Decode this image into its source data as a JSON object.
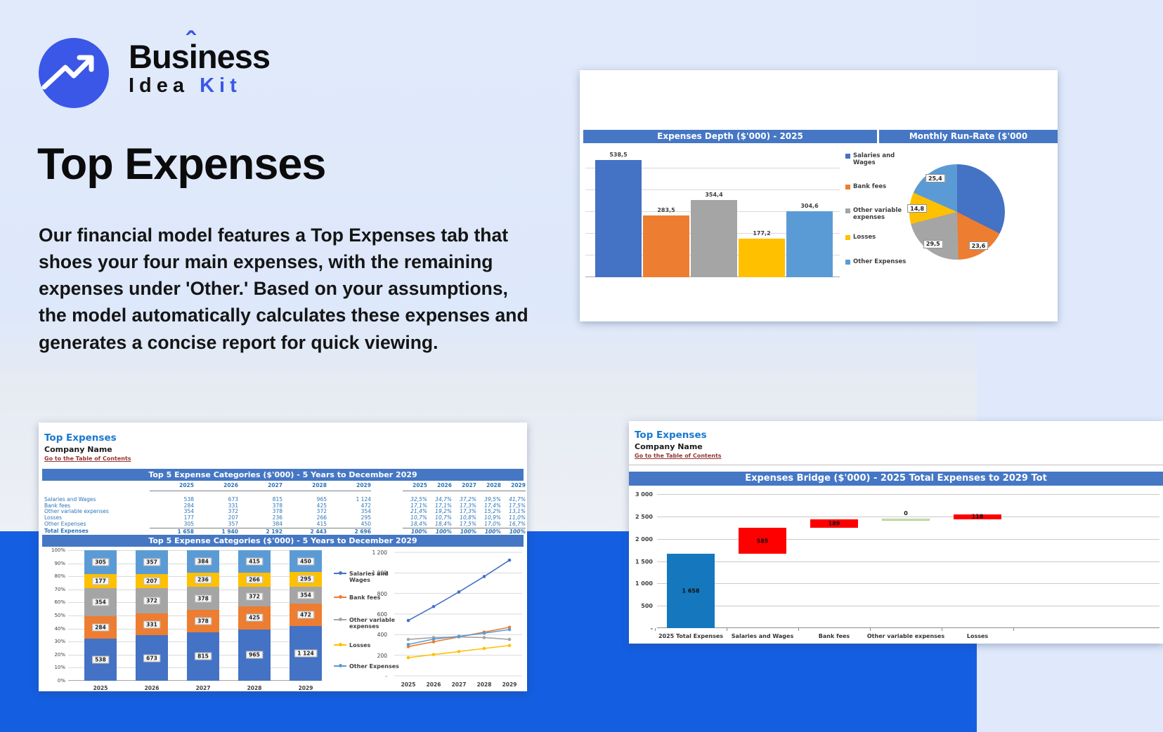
{
  "brand": {
    "line1_pre": "Bus",
    "line1_i": "i",
    "line1_hat": "ˆ",
    "line1_post": "ness",
    "line2_word1": "Idea",
    "line2_word2": "Kit"
  },
  "hero": {
    "title": "Top Expenses",
    "body": "Our financial model features a Top Expenses tab that shoes your four main expenses, with the remaining expenses under 'Other.' Based on your assumptions, the model automatically calculates these expenses and generates a concise report for quick viewing."
  },
  "palette": {
    "series": [
      "#4472C4",
      "#ED7D31",
      "#A5A5A5",
      "#FFC000",
      "#5B9BD5"
    ],
    "header_bar": "#4577C4",
    "red": "#FF0000",
    "total_blue": "#1578BE",
    "green_fill": "#CFE7BD",
    "green_border": "#AFCF92",
    "accent_blue": "#3B57E8",
    "sheet_title_blue": "#1878CE",
    "link_maroon": "#943634",
    "band_blue": "#145EE1"
  },
  "legend_series": [
    "Salaries and Wages",
    "Bank fees",
    "Other variable expenses",
    "Losses",
    "Other Expenses"
  ],
  "card_depth": {
    "bar_title": "Expenses Depth ($'000) - 2025",
    "pie_title": "Monthly Run-Rate ($'000"
  },
  "sheet1": {
    "title": "Top Expenses",
    "company": "Company Name",
    "link": "Go to the Table of Contents",
    "section1": "Top 5 Expense Categories ($'000) - 5 Years to December 2029",
    "section2": "Top 5 Expense Categories ($'000) - 5 Years to December 2029",
    "years": [
      "2025",
      "2026",
      "2027",
      "2028",
      "2029"
    ],
    "rows": [
      {
        "label": "Salaries and Wages",
        "values": [
          "538",
          "673",
          "815",
          "965",
          "1 124"
        ],
        "pcts": [
          "32,5%",
          "34,7%",
          "37,2%",
          "39,5%",
          "41,7%"
        ]
      },
      {
        "label": "Bank fees",
        "values": [
          "284",
          "331",
          "378",
          "425",
          "472"
        ],
        "pcts": [
          "17,1%",
          "17,1%",
          "17,3%",
          "17,4%",
          "17,5%"
        ]
      },
      {
        "label": "Other variable expenses",
        "values": [
          "354",
          "372",
          "378",
          "372",
          "354"
        ],
        "pcts": [
          "21,4%",
          "19,2%",
          "17,3%",
          "15,2%",
          "13,1%"
        ]
      },
      {
        "label": "Losses",
        "values": [
          "177",
          "207",
          "236",
          "266",
          "295"
        ],
        "pcts": [
          "10,7%",
          "10,7%",
          "10,8%",
          "10,9%",
          "11,0%"
        ]
      },
      {
        "label": "Other Expenses",
        "values": [
          "305",
          "357",
          "384",
          "415",
          "450"
        ],
        "pcts": [
          "18,4%",
          "18,4%",
          "17,5%",
          "17,0%",
          "16,7%"
        ]
      }
    ],
    "total": {
      "label": "Total Expenses",
      "values": [
        "1 658",
        "1 940",
        "2 192",
        "2 443",
        "2 696"
      ],
      "pcts": [
        "100%",
        "100%",
        "100%",
        "100%",
        "100%"
      ]
    }
  },
  "sheet2": {
    "title": "Top Expenses",
    "company": "Company Name",
    "link": "Go to the Table of Contents",
    "section": "Expenses Bridge ($'000) - 2025 Total Expenses to 2029 Tot"
  },
  "chart_data": [
    {
      "id": "depth_bar",
      "type": "bar",
      "title": "Expenses Depth ($'000) - 2025",
      "categories": [
        "Salaries and Wages",
        "Bank fees",
        "Other variable expenses",
        "Losses",
        "Other Expenses"
      ],
      "values": [
        538.5,
        283.5,
        354.4,
        177.2,
        304.6
      ],
      "labels": [
        "538,5",
        "283,5",
        "354,4",
        "177,2",
        "304,6"
      ],
      "ylim": [
        0,
        600
      ],
      "grid_step": 100,
      "grid": true,
      "legend_position": "right",
      "axis_tick_labels": false
    },
    {
      "id": "runrate_pie",
      "type": "pie",
      "title": "Monthly Run-Rate ($'000",
      "slices": [
        {
          "name": "Salaries and Wages",
          "pct": 32.5,
          "label": ""
        },
        {
          "name": "Bank fees",
          "pct": 17.1,
          "label": "23,6"
        },
        {
          "name": "Other variable expenses",
          "pct": 21.4,
          "label": "29,5"
        },
        {
          "name": "Losses",
          "pct": 10.7,
          "label": "14,8"
        },
        {
          "name": "Other Expenses",
          "pct": 18.4,
          "label": "25,4"
        }
      ]
    },
    {
      "id": "top5_stacked",
      "type": "bar",
      "stacked_pct": true,
      "title": "Top 5 Expense Categories ($'000) - 5 Years to December 2029",
      "categories": [
        "2025",
        "2026",
        "2027",
        "2028",
        "2029"
      ],
      "series": [
        {
          "name": "Salaries and Wages",
          "pcts": [
            32.5,
            34.7,
            37.2,
            39.5,
            41.7
          ],
          "labels": [
            "538",
            "673",
            "815",
            "965",
            "1 124"
          ]
        },
        {
          "name": "Bank fees",
          "pcts": [
            17.1,
            17.1,
            17.3,
            17.4,
            17.5
          ],
          "labels": [
            "284",
            "331",
            "378",
            "425",
            "472"
          ]
        },
        {
          "name": "Other variable expenses",
          "pcts": [
            21.4,
            19.2,
            17.3,
            15.2,
            13.1
          ],
          "labels": [
            "354",
            "372",
            "378",
            "372",
            "354"
          ]
        },
        {
          "name": "Losses",
          "pcts": [
            10.7,
            10.7,
            10.8,
            10.9,
            11.0
          ],
          "labels": [
            "177",
            "207",
            "236",
            "266",
            "295"
          ]
        },
        {
          "name": "Other Expenses",
          "pcts": [
            18.4,
            18.4,
            17.5,
            17.0,
            16.7
          ],
          "labels": [
            "305",
            "357",
            "384",
            "415",
            "450"
          ]
        }
      ],
      "yticks": [
        "100%",
        "90%",
        "80%",
        "70%",
        "60%",
        "50%",
        "40%",
        "30%",
        "20%",
        "10%",
        "0%"
      ],
      "ylim": [
        0,
        100
      ],
      "grid": true
    },
    {
      "id": "top5_lines",
      "type": "line",
      "categories": [
        "2025",
        "2026",
        "2027",
        "2028",
        "2029"
      ],
      "series": [
        {
          "name": "Salaries and Wages",
          "values": [
            538,
            673,
            815,
            965,
            1124
          ]
        },
        {
          "name": "Bank fees",
          "values": [
            284,
            331,
            378,
            425,
            472
          ]
        },
        {
          "name": "Other variable expenses",
          "values": [
            354,
            372,
            378,
            372,
            354
          ]
        },
        {
          "name": "Losses",
          "values": [
            177,
            207,
            236,
            266,
            295
          ]
        },
        {
          "name": "Other Expenses",
          "values": [
            305,
            357,
            384,
            415,
            450
          ]
        }
      ],
      "ylim": [
        0,
        1200
      ],
      "yticks": [
        "1 200",
        "1 000",
        "800",
        "600",
        "400",
        "200",
        "-"
      ],
      "grid": true
    },
    {
      "id": "bridge",
      "type": "waterfall",
      "title": "Expenses Bridge ($'000) - 2025 Total Expenses to 2029 Tot",
      "ylim": [
        0,
        3000
      ],
      "yticks": [
        "3 000",
        "2 500",
        "2 000",
        "1 500",
        "1 000",
        "500",
        "-"
      ],
      "grid": true,
      "steps": [
        {
          "label": "2025 Total Expenses",
          "start": 0,
          "end": 1658,
          "value_label": "1 658",
          "kind": "total"
        },
        {
          "label": "Salaries and Wages",
          "start": 1658,
          "end": 2243,
          "value_label": "585",
          "kind": "increase"
        },
        {
          "label": "Bank fees",
          "start": 2243,
          "end": 2432,
          "value_label": "189",
          "kind": "increase"
        },
        {
          "label": "Other variable expenses",
          "start": 2432,
          "end": 2432,
          "value_label": "0",
          "kind": "zero"
        },
        {
          "label": "Losses",
          "start": 2432,
          "end": 2550,
          "value_label": "118",
          "kind": "increase"
        }
      ]
    }
  ]
}
